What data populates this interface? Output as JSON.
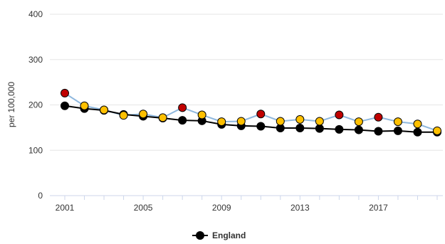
{
  "chart_data": {
    "type": "line",
    "ylabel": "per 100,000",
    "ylim": [
      0,
      400
    ],
    "yticks": [
      0,
      100,
      200,
      300,
      400
    ],
    "xticks": [
      2001,
      2005,
      2009,
      2013,
      2017
    ],
    "xlim": [
      2001,
      2020
    ],
    "grid": true,
    "legend_position": "bottom-center",
    "colors": {
      "england": "#000000",
      "area_line": "#8fb8de",
      "similar": "#ffc000",
      "worse": "#c00000",
      "grid": "#e6e6e6",
      "axis": "#ccd6eb"
    },
    "series": [
      {
        "name": "England",
        "x": [
          2001,
          2002,
          2003,
          2004,
          2005,
          2006,
          2007,
          2008,
          2009,
          2010,
          2011,
          2012,
          2013,
          2014,
          2015,
          2016,
          2017,
          2018,
          2019,
          2020
        ],
        "values": [
          198,
          192,
          188,
          179,
          175,
          171,
          166,
          165,
          157,
          154,
          153,
          149,
          149,
          148,
          146,
          145,
          142,
          143,
          140,
          140
        ]
      },
      {
        "x": [
          2001,
          2002,
          2003,
          2004,
          2005,
          2006,
          2007,
          2008,
          2009,
          2010,
          2011,
          2012,
          2013,
          2014,
          2015,
          2016,
          2017,
          2018,
          2019,
          2020
        ],
        "values": [
          226,
          198,
          189,
          177,
          180,
          172,
          194,
          178,
          163,
          164,
          180,
          164,
          168,
          164,
          178,
          163,
          173,
          163,
          158,
          143
        ],
        "status": [
          "worse",
          "similar",
          "similar",
          "similar",
          "similar",
          "similar",
          "worse",
          "similar",
          "similar",
          "similar",
          "worse",
          "similar",
          "similar",
          "similar",
          "worse",
          "similar",
          "worse",
          "similar",
          "similar",
          "similar"
        ]
      }
    ]
  }
}
